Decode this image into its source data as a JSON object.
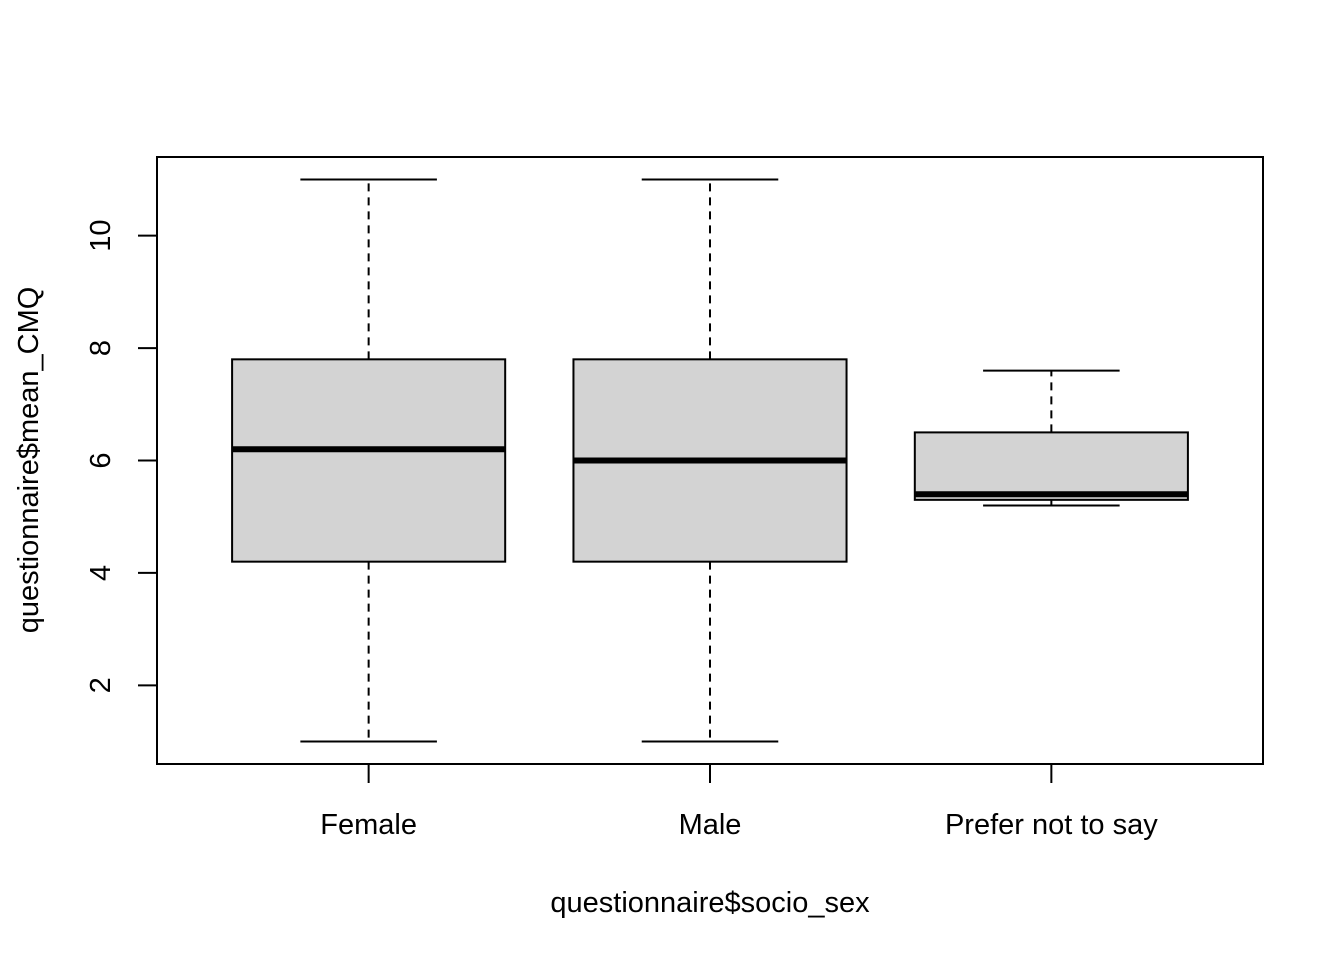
{
  "chart_data": {
    "type": "boxplot",
    "xlabel": "questionnaire$socio_sex",
    "ylabel": "questionnaire$mean_CMQ",
    "ylim": [
      0.6,
      11.4
    ],
    "yticks": [
      2,
      4,
      6,
      8,
      10
    ],
    "categories": [
      "Female",
      "Male",
      "Prefer not to say"
    ],
    "boxes": [
      {
        "category": "Female",
        "min": 1.0,
        "q1": 4.2,
        "median": 6.2,
        "q3": 7.8,
        "max": 11.0
      },
      {
        "category": "Male",
        "min": 1.0,
        "q1": 4.2,
        "median": 6.0,
        "q3": 7.8,
        "max": 11.0
      },
      {
        "category": "Prefer not to say",
        "min": 5.2,
        "q1": 5.3,
        "median": 5.4,
        "q3": 6.5,
        "max": 7.6
      }
    ],
    "box_fill": "#d3d3d3",
    "line_color": "#000000",
    "grid": false,
    "legend": "none"
  }
}
